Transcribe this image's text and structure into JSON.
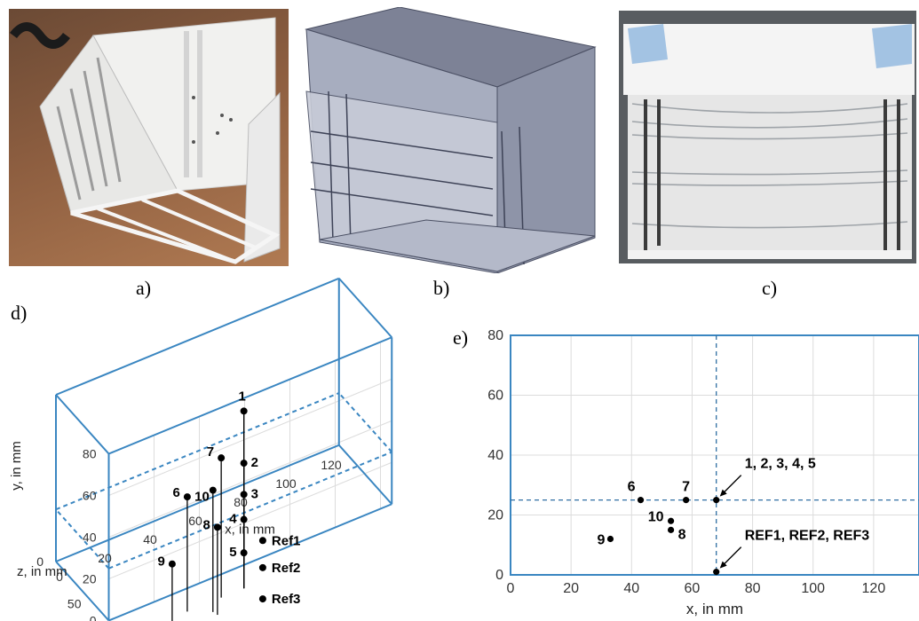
{
  "figure": {
    "captions": {
      "a": "a)",
      "b": "b)",
      "c": "c)",
      "d": "d)",
      "e": "e)"
    },
    "photos": {
      "a": "3D-printed white model frame on wooden desk",
      "b": "CAD rendering of the model box",
      "c": "Photograph of model with wires strung across"
    }
  },
  "colors": {
    "box": "#3a86c1",
    "grid": "#dcdcdc",
    "point": "#000000"
  },
  "chart_data": [
    {
      "type": "scatter",
      "panel": "d",
      "projection": "3d",
      "xlabel": "x, in mm",
      "ylabel": "y, in mm",
      "zlabel": "z, in mm",
      "xticks": [
        "0",
        "20",
        "40",
        "60",
        "80",
        "100",
        "120"
      ],
      "yticks": [
        "0",
        "20",
        "40",
        "60",
        "80"
      ],
      "zticks": [
        "0",
        "50"
      ],
      "points": [
        {
          "label": "1",
          "x": 68,
          "y": 60,
          "z": 25
        },
        {
          "label": "2",
          "x": 68,
          "y": 35,
          "z": 25
        },
        {
          "label": "3",
          "x": 68,
          "y": 20,
          "z": 25
        },
        {
          "label": "4",
          "x": 68,
          "y": 8,
          "z": 25
        },
        {
          "label": "5",
          "x": 68,
          "y": -8,
          "z": 25
        },
        {
          "label": "6",
          "x": 43,
          "y": 30,
          "z": 25
        },
        {
          "label": "7",
          "x": 58,
          "y": 42,
          "z": 25
        },
        {
          "label": "8",
          "x": 53,
          "y": 15,
          "z": 15
        },
        {
          "label": "9",
          "x": 32,
          "y": 8,
          "z": 12
        },
        {
          "label": "10",
          "x": 52,
          "y": 32,
          "z": 18
        },
        {
          "label": "Ref1",
          "x": 68,
          "y": 8,
          "z": 0
        },
        {
          "label": "Ref2",
          "x": 68,
          "y": -5,
          "z": 0
        },
        {
          "label": "Ref3",
          "x": 68,
          "y": -20,
          "z": 0
        }
      ],
      "grid": true
    },
    {
      "type": "scatter",
      "panel": "e",
      "xlabel": "x, in mm",
      "ylabel": "",
      "xlim": [
        0,
        135
      ],
      "ylim": [
        0,
        80
      ],
      "xticks": [
        "0",
        "20",
        "40",
        "60",
        "80",
        "100",
        "120"
      ],
      "yticks": [
        "0",
        "20",
        "40",
        "60",
        "80"
      ],
      "grid": true,
      "points": [
        {
          "label": "6",
          "x": 43,
          "y": 25
        },
        {
          "label": "7",
          "x": 58,
          "y": 25
        },
        {
          "label": "1, 2, 3, 4, 5",
          "x": 68,
          "y": 25
        },
        {
          "label": "10",
          "x": 53,
          "y": 18
        },
        {
          "label": "8",
          "x": 53,
          "y": 15
        },
        {
          "label": "9",
          "x": 33,
          "y": 12
        },
        {
          "label": "REF1, REF2, REF3",
          "x": 68,
          "y": 1
        }
      ],
      "crosshair": {
        "x": 68,
        "y": 25
      }
    }
  ]
}
